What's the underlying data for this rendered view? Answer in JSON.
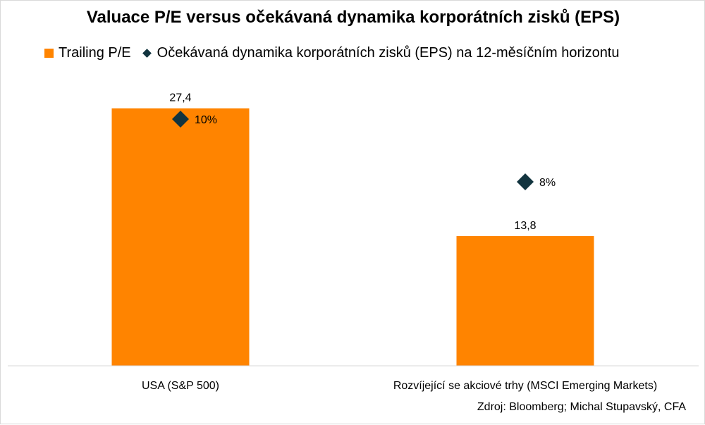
{
  "chart_data": {
    "type": "bar",
    "title": "Valuace P/E versus očekávaná dynamika korporátních zisků (EPS)",
    "categories": [
      "USA (S&P 500)",
      "Rozvíjející se akciové trhy (MSCI Emerging Markets)"
    ],
    "series": [
      {
        "name": "Trailing P/E",
        "type": "bar",
        "values": [
          27.4,
          13.8
        ],
        "labels": [
          "27,4",
          "13,8"
        ],
        "color": "#ff8400"
      },
      {
        "name": "Očekávaná dynamika korporátních zisků (EPS) na 12-měsíčním horizontu",
        "type": "scatter",
        "marker": "diamond",
        "values": [
          10,
          8
        ],
        "labels": [
          "10%",
          "8%"
        ],
        "color": "#12343f"
      }
    ],
    "ylim": [
      0,
      30
    ],
    "grid": false,
    "legend_position": "top-left",
    "source": "Zdroj: Bloomberg; Michal Stupavský, CFA"
  }
}
